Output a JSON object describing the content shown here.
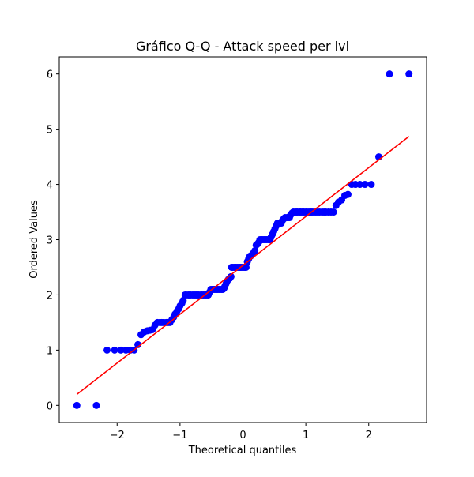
{
  "chart_data": {
    "type": "scatter",
    "title": "Gráfico Q-Q - Attack speed per lvl",
    "xlabel": "Theoretical quantiles",
    "ylabel": "Ordered Values",
    "xlim": [
      -2.92,
      2.92
    ],
    "ylim": [
      -0.31,
      6.31
    ],
    "xticks": [
      -2,
      -1,
      0,
      1,
      2
    ],
    "xtick_labels": [
      "−2",
      "−1",
      "0",
      "1",
      "2"
    ],
    "yticks": [
      0,
      1,
      2,
      3,
      4,
      5,
      6
    ],
    "ytick_labels": [
      "0",
      "1",
      "2",
      "3",
      "4",
      "5",
      "6"
    ],
    "grid": false,
    "legend": "none",
    "series": [
      {
        "kind": "points",
        "color": "#0000ff",
        "x": [
          -2.64,
          -2.33,
          -2.16,
          -2.04,
          -1.94,
          -1.86,
          -1.79,
          -1.73,
          -1.67,
          -1.62,
          -1.57,
          -1.52,
          -1.48,
          -1.44,
          -1.4,
          -1.36,
          -1.32,
          -1.29,
          -1.26,
          -1.22,
          -1.19,
          -1.16,
          -1.13,
          -1.1,
          -1.08,
          -1.05,
          -1.02,
          -1.0,
          -0.97,
          -0.95,
          -0.92,
          -0.9,
          -0.87,
          -0.85,
          -0.83,
          -0.8,
          -0.78,
          -0.76,
          -0.74,
          -0.72,
          -0.7,
          -0.67,
          -0.65,
          -0.63,
          -0.61,
          -0.59,
          -0.57,
          -0.55,
          -0.53,
          -0.51,
          -0.49,
          -0.47,
          -0.45,
          -0.43,
          -0.42,
          -0.4,
          -0.38,
          -0.36,
          -0.34,
          -0.32,
          -0.3,
          -0.29,
          -0.27,
          -0.25,
          -0.23,
          -0.21,
          -0.19,
          -0.18,
          -0.16,
          -0.14,
          -0.12,
          -0.11,
          -0.09,
          -0.07,
          -0.05,
          -0.04,
          -0.02,
          0.0,
          0.02,
          0.04,
          0.05,
          0.07,
          0.09,
          0.11,
          0.12,
          0.14,
          0.16,
          0.18,
          0.19,
          0.21,
          0.23,
          0.25,
          0.27,
          0.29,
          0.3,
          0.32,
          0.34,
          0.36,
          0.38,
          0.4,
          0.42,
          0.43,
          0.45,
          0.47,
          0.49,
          0.51,
          0.53,
          0.55,
          0.57,
          0.59,
          0.61,
          0.63,
          0.65,
          0.67,
          0.7,
          0.72,
          0.74,
          0.76,
          0.78,
          0.8,
          0.83,
          0.85,
          0.87,
          0.9,
          0.92,
          0.95,
          0.97,
          1.0,
          1.02,
          1.05,
          1.08,
          1.1,
          1.13,
          1.16,
          1.19,
          1.22,
          1.26,
          1.29,
          1.32,
          1.36,
          1.4,
          1.44,
          1.48,
          1.52,
          1.57,
          1.62,
          1.67,
          1.73,
          1.79,
          1.86,
          1.94,
          2.04,
          2.16,
          2.33,
          2.64
        ],
        "y": [
          0.0,
          0.0,
          1.0,
          1.0,
          1.0,
          1.0,
          1.0,
          1.0,
          1.1,
          1.28,
          1.33,
          1.35,
          1.36,
          1.37,
          1.45,
          1.5,
          1.5,
          1.5,
          1.5,
          1.5,
          1.5,
          1.5,
          1.55,
          1.6,
          1.65,
          1.7,
          1.75,
          1.8,
          1.85,
          1.9,
          2.0,
          2.0,
          2.0,
          2.0,
          2.0,
          2.0,
          2.0,
          2.0,
          2.0,
          2.0,
          2.0,
          2.0,
          2.0,
          2.0,
          2.0,
          2.0,
          2.0,
          2.0,
          2.05,
          2.1,
          2.1,
          2.1,
          2.1,
          2.1,
          2.1,
          2.1,
          2.1,
          2.1,
          2.1,
          2.1,
          2.12,
          2.15,
          2.2,
          2.25,
          2.28,
          2.3,
          2.33,
          2.5,
          2.5,
          2.5,
          2.5,
          2.5,
          2.5,
          2.5,
          2.5,
          2.5,
          2.5,
          2.5,
          2.5,
          2.5,
          2.5,
          2.6,
          2.65,
          2.7,
          2.7,
          2.72,
          2.75,
          2.78,
          2.8,
          2.9,
          2.92,
          2.95,
          3.0,
          3.0,
          3.0,
          3.0,
          3.0,
          3.0,
          3.0,
          3.0,
          3.0,
          3.0,
          3.05,
          3.1,
          3.15,
          3.2,
          3.25,
          3.3,
          3.3,
          3.3,
          3.3,
          3.35,
          3.38,
          3.4,
          3.4,
          3.4,
          3.4,
          3.45,
          3.48,
          3.5,
          3.5,
          3.5,
          3.5,
          3.5,
          3.5,
          3.5,
          3.5,
          3.5,
          3.5,
          3.5,
          3.5,
          3.5,
          3.5,
          3.5,
          3.5,
          3.5,
          3.5,
          3.5,
          3.5,
          3.5,
          3.5,
          3.5,
          3.62,
          3.68,
          3.72,
          3.8,
          3.82,
          4.0,
          4.0,
          4.0,
          4.0,
          4.0,
          4.5,
          6.0,
          6.0
        ]
      },
      {
        "kind": "line",
        "color": "#ff0000",
        "x": [
          -2.64,
          2.64
        ],
        "y": [
          0.2,
          4.87
        ]
      }
    ]
  }
}
